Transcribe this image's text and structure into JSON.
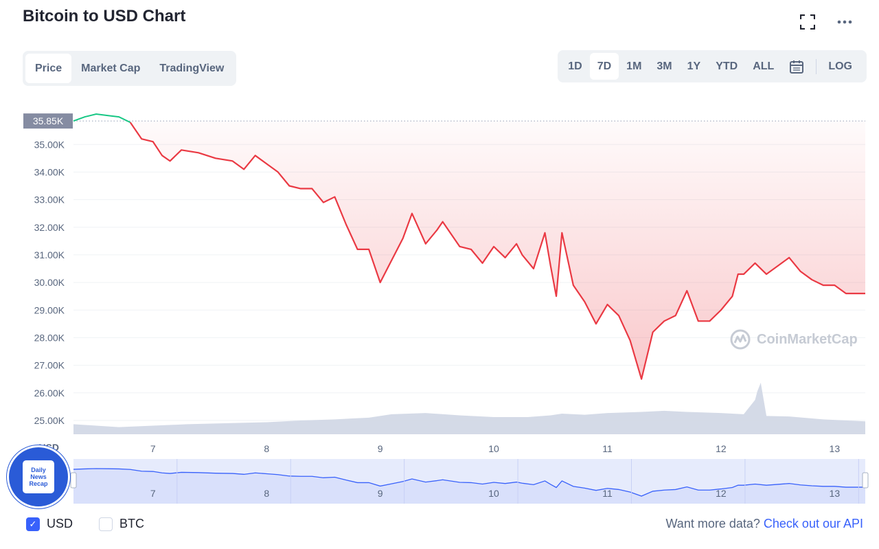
{
  "title": "Bitcoin to USD Chart",
  "view_tabs": [
    {
      "label": "Price",
      "active": true
    },
    {
      "label": "Market Cap",
      "active": false
    },
    {
      "label": "TradingView",
      "active": false
    }
  ],
  "range_tabs": [
    {
      "label": "1D",
      "active": false
    },
    {
      "label": "7D",
      "active": true
    },
    {
      "label": "1M",
      "active": false
    },
    {
      "label": "3M",
      "active": false
    },
    {
      "label": "1Y",
      "active": false
    },
    {
      "label": "YTD",
      "active": false
    },
    {
      "label": "ALL",
      "active": false
    }
  ],
  "log_label": "LOG",
  "icons": {
    "fullscreen": "fullscreen-icon",
    "more": "more-icon",
    "calendar": "calendar-icon"
  },
  "watermark": "CoinMarketCap",
  "badge_lines": [
    "Daily",
    "News",
    "Recap"
  ],
  "currency_checks": [
    {
      "label": "USD",
      "checked": true
    },
    {
      "label": "BTC",
      "checked": false
    }
  ],
  "footer": {
    "text": "Want more data?",
    "link": "Check out our API"
  },
  "colors": {
    "up": "#16c784",
    "down": "#ea3943",
    "fill": "#f7c2c5",
    "volume": "#cfd6e4",
    "accent": "#3861fb",
    "nav_line": "#3861fb",
    "nav_fill": "#e6ebfc"
  },
  "chart_data": {
    "type": "line",
    "xlabel": "",
    "ylabel": "USD",
    "current_price_label": "35.85K",
    "baseline": 35.85,
    "ylim": [
      24.5,
      36.5
    ],
    "y_ticks": [
      "35.00K",
      "34.00K",
      "33.00K",
      "32.00K",
      "31.00K",
      "30.00K",
      "29.00K",
      "28.00K",
      "27.00K",
      "26.00K",
      "25.00K"
    ],
    "y_tick_values": [
      35,
      34,
      33,
      32,
      31,
      30,
      29,
      28,
      27,
      26,
      25
    ],
    "xlim": [
      6.3,
      13.27
    ],
    "x_ticks": [
      "7",
      "8",
      "9",
      "10",
      "11",
      "12",
      "13"
    ],
    "x_tick_values": [
      7,
      8,
      9,
      10,
      11,
      12,
      13
    ],
    "series": [
      {
        "x": [
          6.3,
          6.4,
          6.5,
          6.6,
          6.7,
          6.8,
          6.9,
          7.0,
          7.08,
          7.15,
          7.25,
          7.4,
          7.55,
          7.7,
          7.8,
          7.9,
          8.0,
          8.1,
          8.2,
          8.3,
          8.4,
          8.5,
          8.6,
          8.7,
          8.8,
          8.9,
          9.0,
          9.1,
          9.2,
          9.28,
          9.4,
          9.5,
          9.55,
          9.7,
          9.8,
          9.9,
          10.0,
          10.1,
          10.2,
          10.25,
          10.35,
          10.45,
          10.5,
          10.55,
          10.6,
          10.7,
          10.8,
          10.9,
          11.0,
          11.1,
          11.2,
          11.3,
          11.4,
          11.5,
          11.6,
          11.7,
          11.8,
          11.9,
          12.0,
          12.1,
          12.15,
          12.2,
          12.3,
          12.4,
          12.5,
          12.6,
          12.7,
          12.8,
          12.9,
          13.0,
          13.1,
          13.2,
          13.27
        ],
        "values": [
          35.85,
          36.0,
          36.1,
          36.05,
          36.0,
          35.8,
          35.2,
          35.1,
          34.6,
          34.4,
          34.8,
          34.7,
          34.5,
          34.4,
          34.1,
          34.6,
          34.3,
          34.0,
          33.5,
          33.4,
          33.4,
          32.9,
          33.1,
          32.1,
          31.2,
          31.2,
          30.0,
          30.8,
          31.6,
          32.5,
          31.4,
          31.9,
          32.2,
          31.3,
          31.2,
          30.7,
          31.3,
          30.9,
          31.4,
          31.0,
          30.5,
          31.8,
          30.6,
          29.5,
          31.8,
          29.9,
          29.3,
          28.5,
          29.2,
          28.8,
          27.9,
          26.5,
          28.2,
          28.6,
          28.8,
          29.7,
          28.6,
          28.6,
          29.0,
          29.5,
          30.3,
          30.3,
          30.7,
          30.3,
          30.6,
          30.9,
          30.4,
          30.1,
          29.9,
          29.9,
          29.6,
          29.6,
          29.6
        ]
      }
    ],
    "volume": {
      "x": [
        6.3,
        6.5,
        6.7,
        7.0,
        7.3,
        7.6,
        8.0,
        8.3,
        8.6,
        8.9,
        9.1,
        9.4,
        9.7,
        10.0,
        10.3,
        10.5,
        10.6,
        10.8,
        11.0,
        11.3,
        11.5,
        11.7,
        12.0,
        12.2,
        12.3,
        12.32,
        12.35,
        12.4,
        12.6,
        12.9,
        13.27
      ],
      "values": [
        0.35,
        0.3,
        0.25,
        0.3,
        0.35,
        0.38,
        0.42,
        0.48,
        0.52,
        0.58,
        0.7,
        0.74,
        0.66,
        0.6,
        0.6,
        0.66,
        0.72,
        0.68,
        0.74,
        0.78,
        0.82,
        0.78,
        0.74,
        0.7,
        1.2,
        1.5,
        1.8,
        0.64,
        0.62,
        0.52,
        0.45
      ]
    },
    "navigator": {
      "x_ticks": [
        "7",
        "8",
        "9",
        "10",
        "11",
        "12",
        "13"
      ],
      "x_tick_values": [
        7,
        8,
        9,
        10,
        11,
        12,
        13
      ]
    }
  }
}
